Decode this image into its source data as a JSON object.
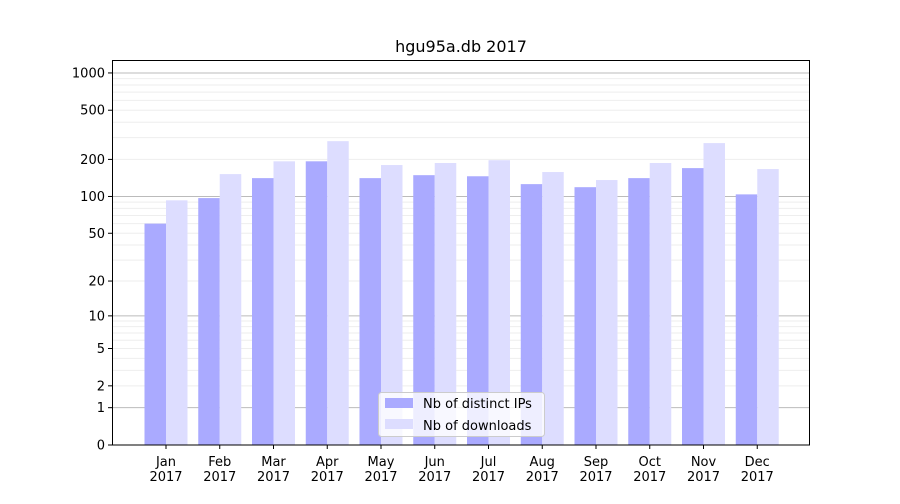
{
  "chart_data": {
    "type": "bar",
    "title": "hgu95a.db 2017",
    "xlabel": "",
    "ylabel": "",
    "yscale": "log10(1+y)",
    "ylim": [
      0,
      1270
    ],
    "grid": true,
    "legend_position": "bottom-center",
    "yticks": [
      0,
      1,
      2,
      5,
      10,
      20,
      50,
      100,
      200,
      500,
      1000
    ],
    "categories": [
      "Jan\n2017",
      "Feb\n2017",
      "Mar\n2017",
      "Apr\n2017",
      "May\n2017",
      "Jun\n2017",
      "Jul\n2017",
      "Aug\n2017",
      "Sep\n2017",
      "Oct\n2017",
      "Nov\n2017",
      "Dec\n2017"
    ],
    "series": [
      {
        "name": "Nb of distinct IPs",
        "color": "#aaaaff",
        "values": [
          60,
          97,
          141,
          193,
          141,
          149,
          146,
          126,
          119,
          141,
          170,
          104
        ]
      },
      {
        "name": "Nb of downloads",
        "color": "#ddddff",
        "values": [
          93,
          152,
          193,
          281,
          180,
          187,
          197,
          158,
          136,
          187,
          271,
          167
        ]
      }
    ]
  }
}
